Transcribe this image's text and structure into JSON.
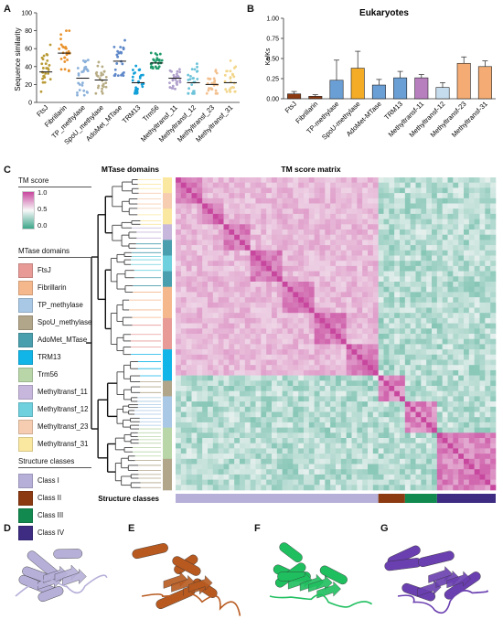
{
  "panels": {
    "A": "A",
    "B": "B",
    "C": "C",
    "D": "D",
    "E": "E",
    "F": "F",
    "G": "G"
  },
  "colors": {
    "FtsJ": "#e79a96",
    "Fibrillarin": "#f5b88c",
    "TP_methylase": "#a8c8e6",
    "SpoU_methylase": "#b2a68a",
    "AdoMet_MTase": "#4a9fae",
    "TRM13": "#11b5e8",
    "Trm56": "#b8d6a8",
    "Methyltransf_11": "#c7b7dc",
    "Methyltransf_12": "#6fd0de",
    "Methyltransf_23": "#f6cdb0",
    "Methyltransf_31": "#fbe8a0",
    "class_I": "#b6b0d9",
    "class_II": "#8b3a12",
    "class_III": "#12894f",
    "class_IV": "#3d2c82",
    "dot_A": [
      "#b99a34",
      "#e9922c",
      "#8ab0da",
      "#b8ad85",
      "#5f88c9",
      "#12a0d8",
      "#1e9a6a",
      "#b0a0cc",
      "#6cc3d9",
      "#f3c08f",
      "#f2d68a"
    ]
  },
  "chart_data": [
    {
      "type": "scatter",
      "title": "",
      "xlabel": "",
      "ylabel": "Sequence similarity",
      "ylim": [
        0,
        100
      ],
      "yticks": [
        "0",
        "20",
        "40",
        "60",
        "80",
        "100"
      ],
      "categories": [
        "FtsJ",
        "Fibrillarin",
        "TP_methylase",
        "SpoU_methylase",
        "AdoMet_MTase",
        "TRM13",
        "Trm56",
        "Methyltransf_11",
        "Methyltransf_12",
        "Methyltransf_23",
        "Methyltransf_31"
      ],
      "medians": [
        34,
        55,
        27,
        25,
        46,
        22,
        44,
        27,
        22,
        20,
        22
      ],
      "spread": [
        [
          12,
          70
        ],
        [
          30,
          80
        ],
        [
          8,
          55
        ],
        [
          10,
          45
        ],
        [
          30,
          88
        ],
        [
          10,
          52
        ],
        [
          38,
          68
        ],
        [
          15,
          42
        ],
        [
          10,
          55
        ],
        [
          10,
          50
        ],
        [
          12,
          60
        ]
      ]
    },
    {
      "type": "bar",
      "title": "Eukaryotes",
      "xlabel": "",
      "ylabel": "Ka/Ks",
      "ylim": [
        0,
        1
      ],
      "yticks": [
        "0.00",
        "0.25",
        "0.50",
        "0.75",
        "1.00"
      ],
      "categories": [
        "FtsJ",
        "Fibrillarin",
        "TP-methylase",
        "SpoU-methylase",
        "AdoMet-MTase",
        "TRM13",
        "Methyltransf-11",
        "Methyltransf-12",
        "Methyltransf-23",
        "Methyltransf-31"
      ],
      "values": [
        0.06,
        0.03,
        0.23,
        0.38,
        0.17,
        0.26,
        0.26,
        0.14,
        0.44,
        0.4
      ],
      "errors": [
        0.03,
        0.02,
        0.25,
        0.21,
        0.07,
        0.08,
        0.04,
        0.06,
        0.08,
        0.07
      ],
      "bar_colors": [
        "#8b3a12",
        "#8b3a12",
        "#6a9fd6",
        "#f4ac27",
        "#6a9fd6",
        "#6a9fd6",
        "#b87fbf",
        "#c5dcee",
        "#f4ac74",
        "#f4ac74"
      ]
    },
    {
      "type": "heatmap",
      "title": "TM score matrix",
      "row_header": "MTase domains",
      "bottom_label": "Structure classes",
      "colorbar": {
        "title": "TM score",
        "ticks": [
          "1.0",
          "0.5",
          "0.0"
        ],
        "high": "#c8479e",
        "mid": "#f8f8f8",
        "low": "#3ba58a"
      },
      "blocks": [
        {
          "class": "Class I",
          "fraction": 0.64
        },
        {
          "class": "Class II",
          "fraction": 0.08
        },
        {
          "class": "Class III",
          "fraction": 0.1
        },
        {
          "class": "Class IV",
          "fraction": 0.18
        }
      ]
    }
  ],
  "legend": {
    "tm_title": "TM score",
    "tm_ticks": [
      "1.0",
      "0.5",
      "0.0"
    ],
    "domains_title": "MTase domains",
    "domains": [
      {
        "label": "FtsJ",
        "color": "#e79a96"
      },
      {
        "label": "Fibrillarin",
        "color": "#f5b88c"
      },
      {
        "label": "TP_methylase",
        "color": "#a8c8e6"
      },
      {
        "label": "SpoU_methylase",
        "color": "#b2a68a"
      },
      {
        "label": "AdoMet_MTase",
        "color": "#4a9fae"
      },
      {
        "label": "TRM13",
        "color": "#11b5e8"
      },
      {
        "label": "Trm56",
        "color": "#b8d6a8"
      },
      {
        "label": "Methyltransf_11",
        "color": "#c7b7dc"
      },
      {
        "label": "Methyltransf_12",
        "color": "#6fd0de"
      },
      {
        "label": "Methyltransf_23",
        "color": "#f6cdb0"
      },
      {
        "label": "Methyltransf_31",
        "color": "#fbe8a0"
      }
    ],
    "classes_title": "Structure classes",
    "classes": [
      {
        "label": "Class I",
        "color": "#b6b0d9"
      },
      {
        "label": "Class II",
        "color": "#8b3a12"
      },
      {
        "label": "Class III",
        "color": "#12894f"
      },
      {
        "label": "Class IV",
        "color": "#3d2c82"
      }
    ]
  },
  "structures": [
    {
      "panel": "D",
      "color": "#b6b0d9"
    },
    {
      "panel": "E",
      "color": "#b85a20"
    },
    {
      "panel": "F",
      "color": "#1fbf5f"
    },
    {
      "panel": "G",
      "color": "#6a3fb0"
    }
  ]
}
